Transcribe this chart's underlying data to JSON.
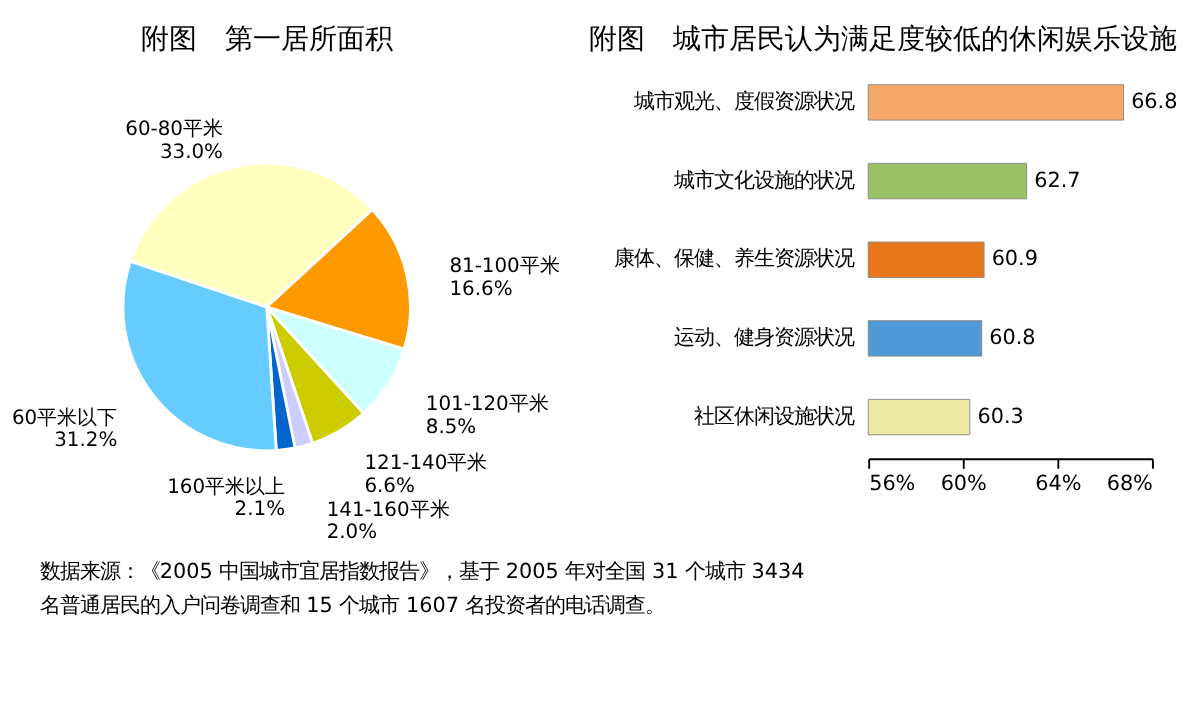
{
  "chart_data": [
    {
      "type": "pie",
      "title": "附图　第一居所面积",
      "categories": [
        "60-80平米",
        "81-100平米",
        "101-120平米",
        "121-140平米",
        "141-160平米",
        "160平米以上",
        "60平米以下"
      ],
      "values": [
        33.0,
        16.6,
        8.5,
        6.6,
        2.0,
        2.1,
        31.2
      ],
      "value_labels": [
        "33.0%",
        "16.6%",
        "8.5%",
        "6.6%",
        "2.0%",
        "2.1%",
        "31.2%"
      ],
      "colors": [
        "#ffffc0",
        "#ff9900",
        "#ccffff",
        "#cccc00",
        "#ccccff",
        "#0066cc",
        "#66ccff"
      ],
      "legend": false
    },
    {
      "type": "bar",
      "orientation": "horizontal",
      "title": "附图　城市居民认为满足度较低的休闲娱乐设施",
      "categories": [
        "城市观光、度假资源状况",
        "城市文化设施的状况",
        "康体、保健、养生资源状况",
        "运动、健身资源状况",
        "社区休闲设施状况"
      ],
      "values": [
        66.8,
        62.7,
        60.9,
        60.8,
        60.3
      ],
      "colors": [
        "#f5a86a",
        "#9bc165",
        "#e8761a",
        "#4f9ad6",
        "#efe9a6"
      ],
      "xlim": [
        56,
        68
      ],
      "xticks": [
        {
          "value": 56,
          "label": "56%"
        },
        {
          "value": 60,
          "label": "60%"
        },
        {
          "value": 64,
          "label": "64%"
        },
        {
          "value": 68,
          "label": "68%"
        }
      ],
      "data_labels": true,
      "grid": false,
      "legend": false,
      "annotations": [
        "数据来源：《2005 中国城市宜居指数报告》，基于 2005 年对全国 31 个城市 3434 名普通居民的入户问卷调查和 15 个城市 1607 名投资者的电话调查。"
      ]
    }
  ]
}
